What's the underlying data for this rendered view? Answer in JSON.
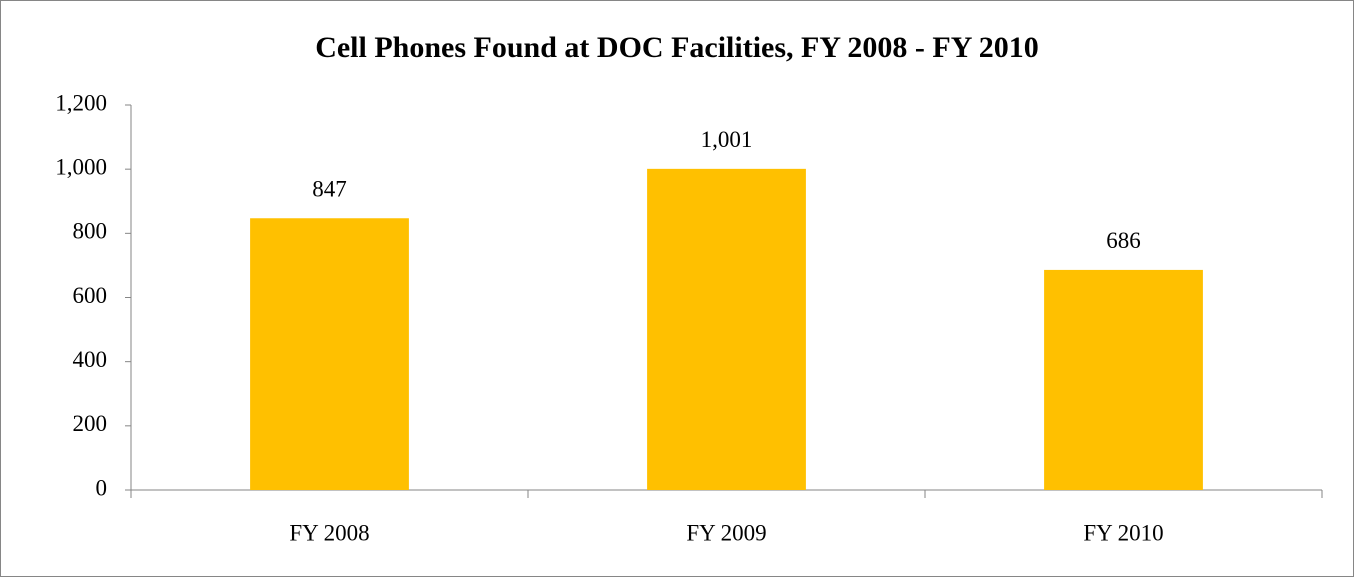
{
  "chart_data": {
    "type": "bar",
    "title": "Cell Phones Found at DOC Facilities,  FY 2008 - FY 2010",
    "categories": [
      "FY 2008",
      "FY 2009",
      "FY 2010"
    ],
    "values": [
      847,
      1001,
      686
    ],
    "value_labels": [
      "847",
      "1,001",
      "686"
    ],
    "color": "#ffc000",
    "ylim": [
      0,
      1200
    ],
    "yticks": [
      0,
      200,
      400,
      600,
      800,
      {
        "value": 1000,
        "label": "1,000"
      },
      {
        "value": 1200,
        "label": "1,200"
      }
    ],
    "grid": false
  }
}
